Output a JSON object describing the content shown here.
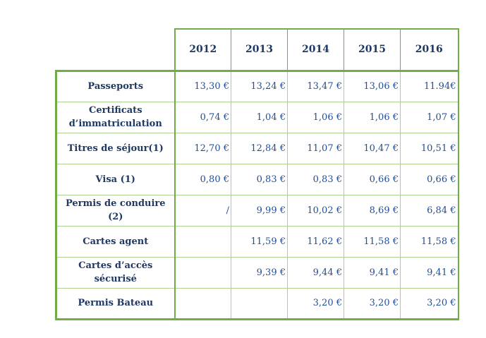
{
  "table": {
    "years": [
      "2012",
      "2013",
      "2014",
      "2015",
      "2016"
    ],
    "rows": [
      {
        "label": "Passeports",
        "values": [
          "13,30 €",
          "13,24 €",
          "13,47 €",
          "13,06 €",
          "11.94€"
        ]
      },
      {
        "label": "Certificats d’immatriculation",
        "values": [
          "0,74 €",
          "1,04 €",
          "1,06 €",
          "1,06 €",
          "1,07 €"
        ]
      },
      {
        "label": "Titres de séjour(1)",
        "values": [
          "12,70 €",
          "12,84 €",
          "11,07 €",
          "10,47 €",
          "10,51 €"
        ]
      },
      {
        "label": "Visa (1)",
        "values": [
          "0,80 €",
          "0,83 €",
          "0,83 €",
          "0,66 €",
          "0,66 €"
        ]
      },
      {
        "label": "Permis de conduire (2)",
        "values": [
          "/",
          "9,99 €",
          "10,02 €",
          "8,69 €",
          "6,84 €"
        ]
      },
      {
        "label": "Cartes agent",
        "values": [
          "",
          "11,59 €",
          "11,62 €",
          "11,58 €",
          "11,58 €"
        ]
      },
      {
        "label": "Cartes d’accès sécurisé",
        "values": [
          "",
          "9,39 €",
          "9,44 €",
          "9,41 €",
          "9,41 €"
        ]
      },
      {
        "label": "Permis Bateau",
        "values": [
          "",
          "",
          "3,20 €",
          "3,20 €",
          "3,20 €"
        ]
      }
    ]
  }
}
